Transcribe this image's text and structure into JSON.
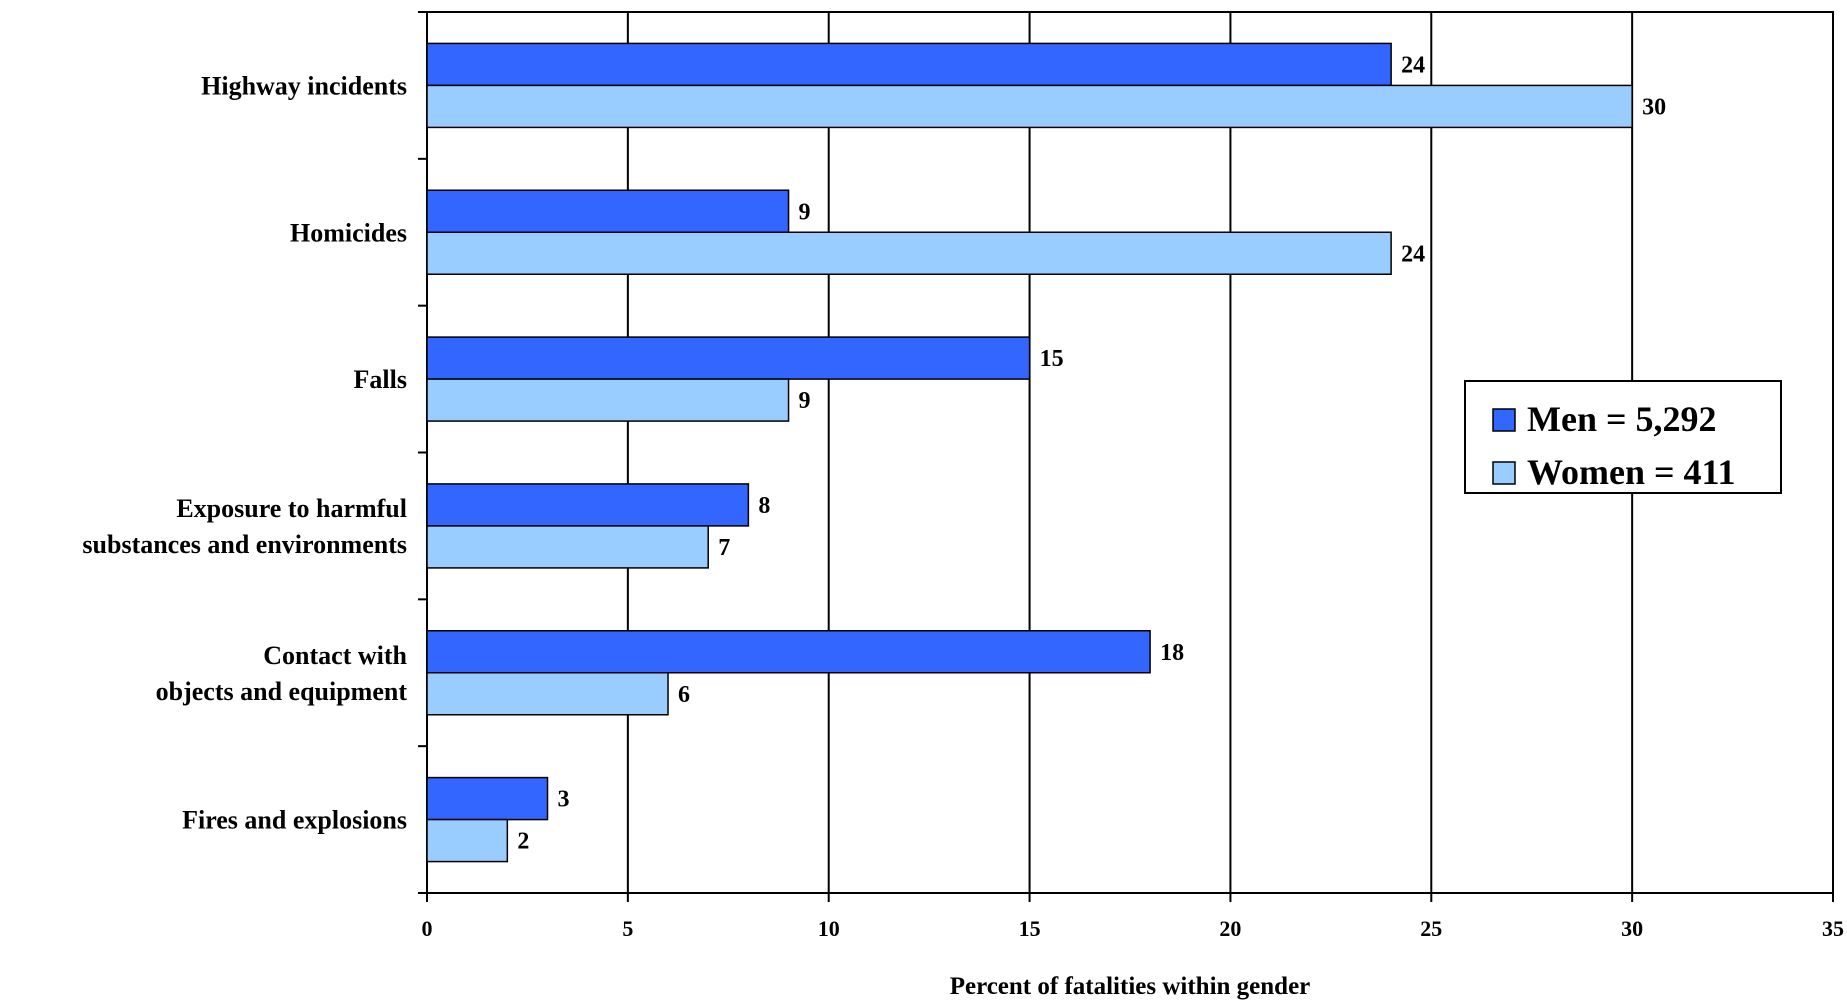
{
  "chart_data": {
    "type": "bar",
    "orientation": "horizontal",
    "categories": [
      [
        "Highway incidents"
      ],
      [
        "Homicides"
      ],
      [
        "Falls"
      ],
      [
        "Exposure to harmful",
        "substances and environments"
      ],
      [
        "Contact with",
        "objects and equipment"
      ],
      [
        "Fires and explosions"
      ]
    ],
    "series": [
      {
        "name": "Men = 5,292",
        "color": "#3366ff",
        "values": [
          24,
          9,
          15,
          8,
          18,
          3
        ]
      },
      {
        "name": "Women = 411",
        "color": "#99ccff",
        "values": [
          30,
          24,
          9,
          7,
          6,
          2
        ]
      }
    ],
    "xlabel": "Percent of fatalities within gender",
    "xlim": [
      0,
      35
    ],
    "xticks": [
      "0",
      "5",
      "10",
      "15",
      "20",
      "25",
      "30",
      "35"
    ],
    "grid": "vertical",
    "legend_position": "right"
  }
}
